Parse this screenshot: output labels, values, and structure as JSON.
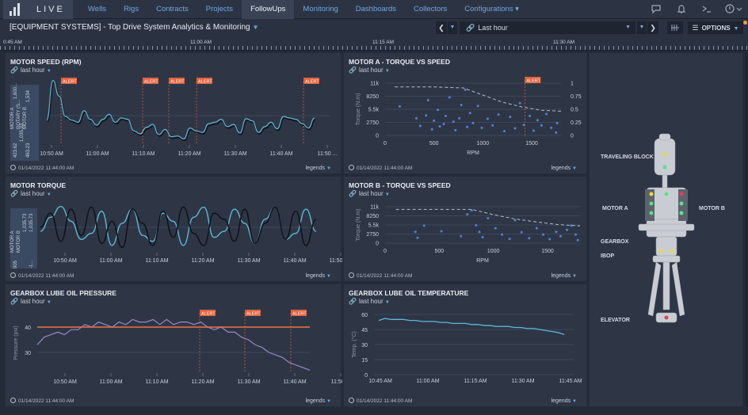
{
  "app": {
    "name": "LIVE"
  },
  "nav": {
    "items": [
      "Wells",
      "Rigs",
      "Contracts",
      "Projects",
      "FollowUps",
      "Monitoring",
      "Dashboards",
      "Collectors",
      "Configurations"
    ],
    "active": "FollowUps"
  },
  "header": {
    "title": "[EQUIPMENT SYSTEMS] - Top Drive System Analytics & Monitoring",
    "time_range": "Last hour",
    "options_label": "OPTIONS"
  },
  "timeline": {
    "labels": [
      "0:45 AM",
      "11:00 AM",
      "11:15 AM",
      "11:30 AM"
    ]
  },
  "colors": {
    "line_blue": "#5bb8d8",
    "line_dark": "#10131a",
    "alert": "#e0623c",
    "threshold": "#f07040",
    "purple": "#9b86c9",
    "dashed": "#b8bdc6",
    "point": "#4a84e0"
  },
  "panels": {
    "motor_speed": {
      "title": "MOTOR SPEED (RPM)",
      "range": "last hour",
      "footer": "01/14/2022 11:44:00 AM",
      "legends": "legends",
      "side_labels": [
        "MOTOR A",
        "ROTARY (S...",
        "MOTOR B",
        "1,600...",
        "1,035.93",
        "1,534",
        "423.62",
        "463.23"
      ],
      "x_ticks": [
        "10:50 AM",
        "11:00 AM",
        "11:10 AM",
        "11:20 AM",
        "11:30 AM",
        "11:40 AM",
        "11:50 ..."
      ],
      "alert": "ALERT"
    },
    "torque_a": {
      "title": "MOTOR A - TORQUE VS SPEED",
      "range": "last hour",
      "footer": "01/14/2022 11:44:00 AM",
      "legends": "legends",
      "y_ticks": [
        "11k",
        "8250",
        "5.5k",
        "2750",
        "0"
      ],
      "y2_ticks": [
        "1",
        "0.75",
        "0.5",
        "0.25",
        "0"
      ],
      "x_ticks": [
        "0",
        "500",
        "1000",
        "1500"
      ],
      "xlabel": "RPM",
      "ylabel": "Torque (N.m)",
      "alert": "ALERT"
    },
    "motor_torque": {
      "title": "MOTOR TORQUE",
      "range": "last hour",
      "footer": "01/14/2022 11:44:00 AM",
      "legends": "legends",
      "side_labels": [
        "MOTOR A",
        "MOTOR B",
        "1,035.73",
        "905",
        "1,035.73",
        "-1..."
      ],
      "x_ticks": [
        "10:50 AM",
        "11:00 AM",
        "11:10 AM",
        "11:20 AM",
        "11:30 AM",
        "11:40 AM",
        "11:50 AM"
      ]
    },
    "torque_b": {
      "title": "MOTOR B - TORQUE VS SPEED",
      "range": "last hour",
      "footer": "01/14/2022 11:44:00 AM",
      "legends": "legends",
      "y_ticks": [
        "11k",
        "8250",
        "5.5k",
        "2750",
        "0"
      ],
      "x_ticks": [
        "0",
        "500",
        "1000",
        "1500"
      ],
      "xlabel": "RPM",
      "ylabel": "Torque (N.m)"
    },
    "gearbox_pressure": {
      "title": "GEARBOX LUBE OIL PRESSURE",
      "range": "last hour",
      "footer": "01/14/2022 11:44:00 AM",
      "legends": "legends",
      "y_ticks": [
        "40",
        "30"
      ],
      "ylabel": "Pressure (psi)",
      "x_ticks": [
        "10:50 AM",
        "11:00 AM",
        "11:10 AM",
        "11:20 AM",
        "11:30 AM",
        "11:40 AM",
        "11:50 ..."
      ],
      "alert": "ALERT"
    },
    "gearbox_temp": {
      "title": "GEARBOX LUBE OIL TEMPERATURE",
      "range": "last hour",
      "footer": "01/14/2022 11:44:00 AM",
      "legends": "legends",
      "y_ticks": [
        "60",
        "45",
        "30",
        "15",
        "0"
      ],
      "ylabel": "Temp. (°C)",
      "x_ticks": [
        "10:45 AM",
        "11:00 AM",
        "11:15 AM",
        "11:30 AM",
        "11:45 AM"
      ]
    }
  },
  "diagram": {
    "labels": {
      "traveling_block": "TRAVELING BLOCK",
      "motor_a": "MOTOR A",
      "motor_b": "MOTOR B",
      "gearbox": "GEARBOX",
      "ibop": "IBOP",
      "elevator": "ELEVATOR"
    }
  },
  "chart_data": [
    {
      "type": "line",
      "title": "MOTOR SPEED (RPM)",
      "x_ticks": [
        "10:50 AM",
        "11:00 AM",
        "11:10 AM",
        "11:20 AM",
        "11:30 AM",
        "11:40 AM",
        "11:50 ..."
      ],
      "series": [
        {
          "values": [
            1050,
            1600,
            1380,
            1100,
            1050,
            1020,
            1180,
            1060,
            980,
            1060,
            1130,
            1020,
            1080,
            1060,
            900,
            860,
            950,
            990,
            850,
            920,
            820,
            830,
            790,
            940,
            900,
            880,
            1000,
            1020,
            1060,
            960,
            990,
            870,
            1070,
            1040,
            880,
            960,
            1020,
            930,
            1100,
            1080,
            1060,
            1000,
            940,
            1080
          ]
        }
      ],
      "alerts": [
        "10:48 AM",
        "11:10 AM",
        "11:16 AM",
        "11:21 AM",
        "11:43 AM"
      ]
    },
    {
      "type": "scatter",
      "title": "MOTOR A - TORQUE VS SPEED",
      "xlabel": "RPM",
      "ylabel": "Torque (N.m)",
      "x_range": [
        0,
        1800
      ],
      "y_range": [
        0,
        11000
      ],
      "points": [
        [
          150,
          6100
        ],
        [
          320,
          3600
        ],
        [
          360,
          2000
        ],
        [
          420,
          4200
        ],
        [
          440,
          7400
        ],
        [
          480,
          1300
        ],
        [
          500,
          3100
        ],
        [
          540,
          5400
        ],
        [
          560,
          1900
        ],
        [
          600,
          2400
        ],
        [
          620,
          4100
        ],
        [
          660,
          8000
        ],
        [
          700,
          2900
        ],
        [
          720,
          1100
        ],
        [
          760,
          3600
        ],
        [
          780,
          6400
        ],
        [
          820,
          9600
        ],
        [
          840,
          1800
        ],
        [
          870,
          4700
        ],
        [
          900,
          2600
        ],
        [
          950,
          6200
        ],
        [
          990,
          1600
        ],
        [
          1050,
          3500
        ],
        [
          1100,
          2100
        ],
        [
          1160,
          4400
        ],
        [
          1220,
          900
        ],
        [
          1280,
          3900
        ],
        [
          1330,
          1500
        ],
        [
          1380,
          6800
        ],
        [
          1420,
          2200
        ],
        [
          1480,
          4100
        ],
        [
          1520,
          1000
        ],
        [
          1560,
          3200
        ],
        [
          1600,
          2100
        ],
        [
          1650,
          4500
        ],
        [
          1700,
          1600
        ],
        [
          1750,
          600
        ],
        [
          1760,
          2600
        ]
      ],
      "dashed_curve": [
        [
          100,
          10200
        ],
        [
          500,
          10200
        ],
        [
          800,
          10000
        ],
        [
          1000,
          8500
        ],
        [
          1200,
          7000
        ],
        [
          1400,
          6000
        ],
        [
          1600,
          5300
        ],
        [
          1800,
          5100
        ]
      ]
    },
    {
      "type": "line",
      "title": "MOTOR TORQUE",
      "x_ticks": [
        "10:50 AM",
        "11:00 AM",
        "11:10 AM",
        "11:20 AM",
        "11:30 AM",
        "11:40 AM",
        "11:50 AM"
      ],
      "series": [
        {
          "name": "MOTOR A",
          "values": [
            -200,
            500,
            1035,
            300,
            -600,
            -300,
            800,
            -900,
            200,
            900,
            -400,
            -700,
            700,
            300,
            -900,
            500,
            1000,
            -500,
            -200,
            900,
            200,
            -800,
            400,
            1000,
            -600,
            -300,
            900,
            -200
          ]
        },
        {
          "name": "MOTOR B",
          "values": [
            0,
            700,
            -700,
            900,
            -400,
            1000,
            -800,
            300,
            -1000,
            900,
            200,
            -900,
            800,
            -500,
            1000,
            -300,
            -900,
            700,
            400,
            -700,
            900,
            -800,
            200,
            1000,
            -600,
            800,
            -900,
            400
          ]
        }
      ]
    },
    {
      "type": "scatter",
      "title": "MOTOR B - TORQUE VS SPEED",
      "xlabel": "RPM",
      "ylabel": "Torque (N.m)",
      "x_range": [
        0,
        1800
      ],
      "y_range": [
        0,
        11000
      ],
      "points": [
        [
          280,
          3400
        ],
        [
          300,
          1600
        ],
        [
          360,
          5300
        ],
        [
          520,
          3600
        ],
        [
          700,
          2100
        ],
        [
          760,
          8700
        ],
        [
          800,
          9900
        ],
        [
          840,
          5400
        ],
        [
          870,
          3400
        ],
        [
          900,
          1800
        ],
        [
          950,
          7500
        ],
        [
          1020,
          4500
        ],
        [
          1080,
          2600
        ],
        [
          1150,
          1300
        ],
        [
          1200,
          6900
        ],
        [
          1260,
          3300
        ],
        [
          1330,
          1500
        ],
        [
          1400,
          4500
        ],
        [
          1460,
          2600
        ],
        [
          1520,
          1200
        ],
        [
          1580,
          3400
        ],
        [
          1620,
          2100
        ],
        [
          1680,
          4000
        ],
        [
          1720,
          5300
        ],
        [
          1760,
          2600
        ],
        [
          1780,
          900
        ]
      ],
      "dashed_curve": [
        [
          100,
          10200
        ],
        [
          500,
          10200
        ],
        [
          800,
          10200
        ],
        [
          1000,
          8600
        ],
        [
          1200,
          7300
        ],
        [
          1400,
          6400
        ],
        [
          1600,
          5600
        ],
        [
          1800,
          5200
        ]
      ]
    },
    {
      "type": "line",
      "title": "GEARBOX LUBE OIL PRESSURE",
      "ylabel": "Pressure (psi)",
      "x_ticks": [
        "10:50 AM",
        "11:00 AM",
        "11:10 AM",
        "11:20 AM",
        "11:30 AM",
        "11:40 AM",
        "11:50 ..."
      ],
      "threshold": 40,
      "series": [
        {
          "values": [
            33,
            36,
            37,
            38,
            37,
            39,
            39,
            41,
            40,
            42,
            41,
            40,
            42,
            41,
            43,
            42,
            42,
            43,
            41,
            43,
            41,
            42,
            42,
            41,
            42,
            40,
            39,
            40,
            38,
            38,
            36,
            35,
            33,
            32,
            30,
            29,
            28,
            26,
            25,
            24,
            23
          ]
        }
      ],
      "alerts": [
        "11:19 AM",
        "11:29 AM",
        "11:39 AM"
      ]
    },
    {
      "type": "line",
      "title": "GEARBOX LUBE OIL TEMPERATURE",
      "ylabel": "Temp. (°C)",
      "x_ticks": [
        "10:45 AM",
        "11:00 AM",
        "11:15 AM",
        "11:30 AM",
        "11:45 AM"
      ],
      "series": [
        {
          "values": [
            54,
            56,
            55,
            55,
            55,
            54,
            54,
            53,
            53,
            53,
            52,
            52,
            51,
            51,
            51,
            50,
            50,
            49,
            49,
            48,
            48,
            48,
            47,
            47,
            46,
            46,
            45,
            44,
            43,
            42,
            40
          ]
        }
      ]
    }
  ]
}
